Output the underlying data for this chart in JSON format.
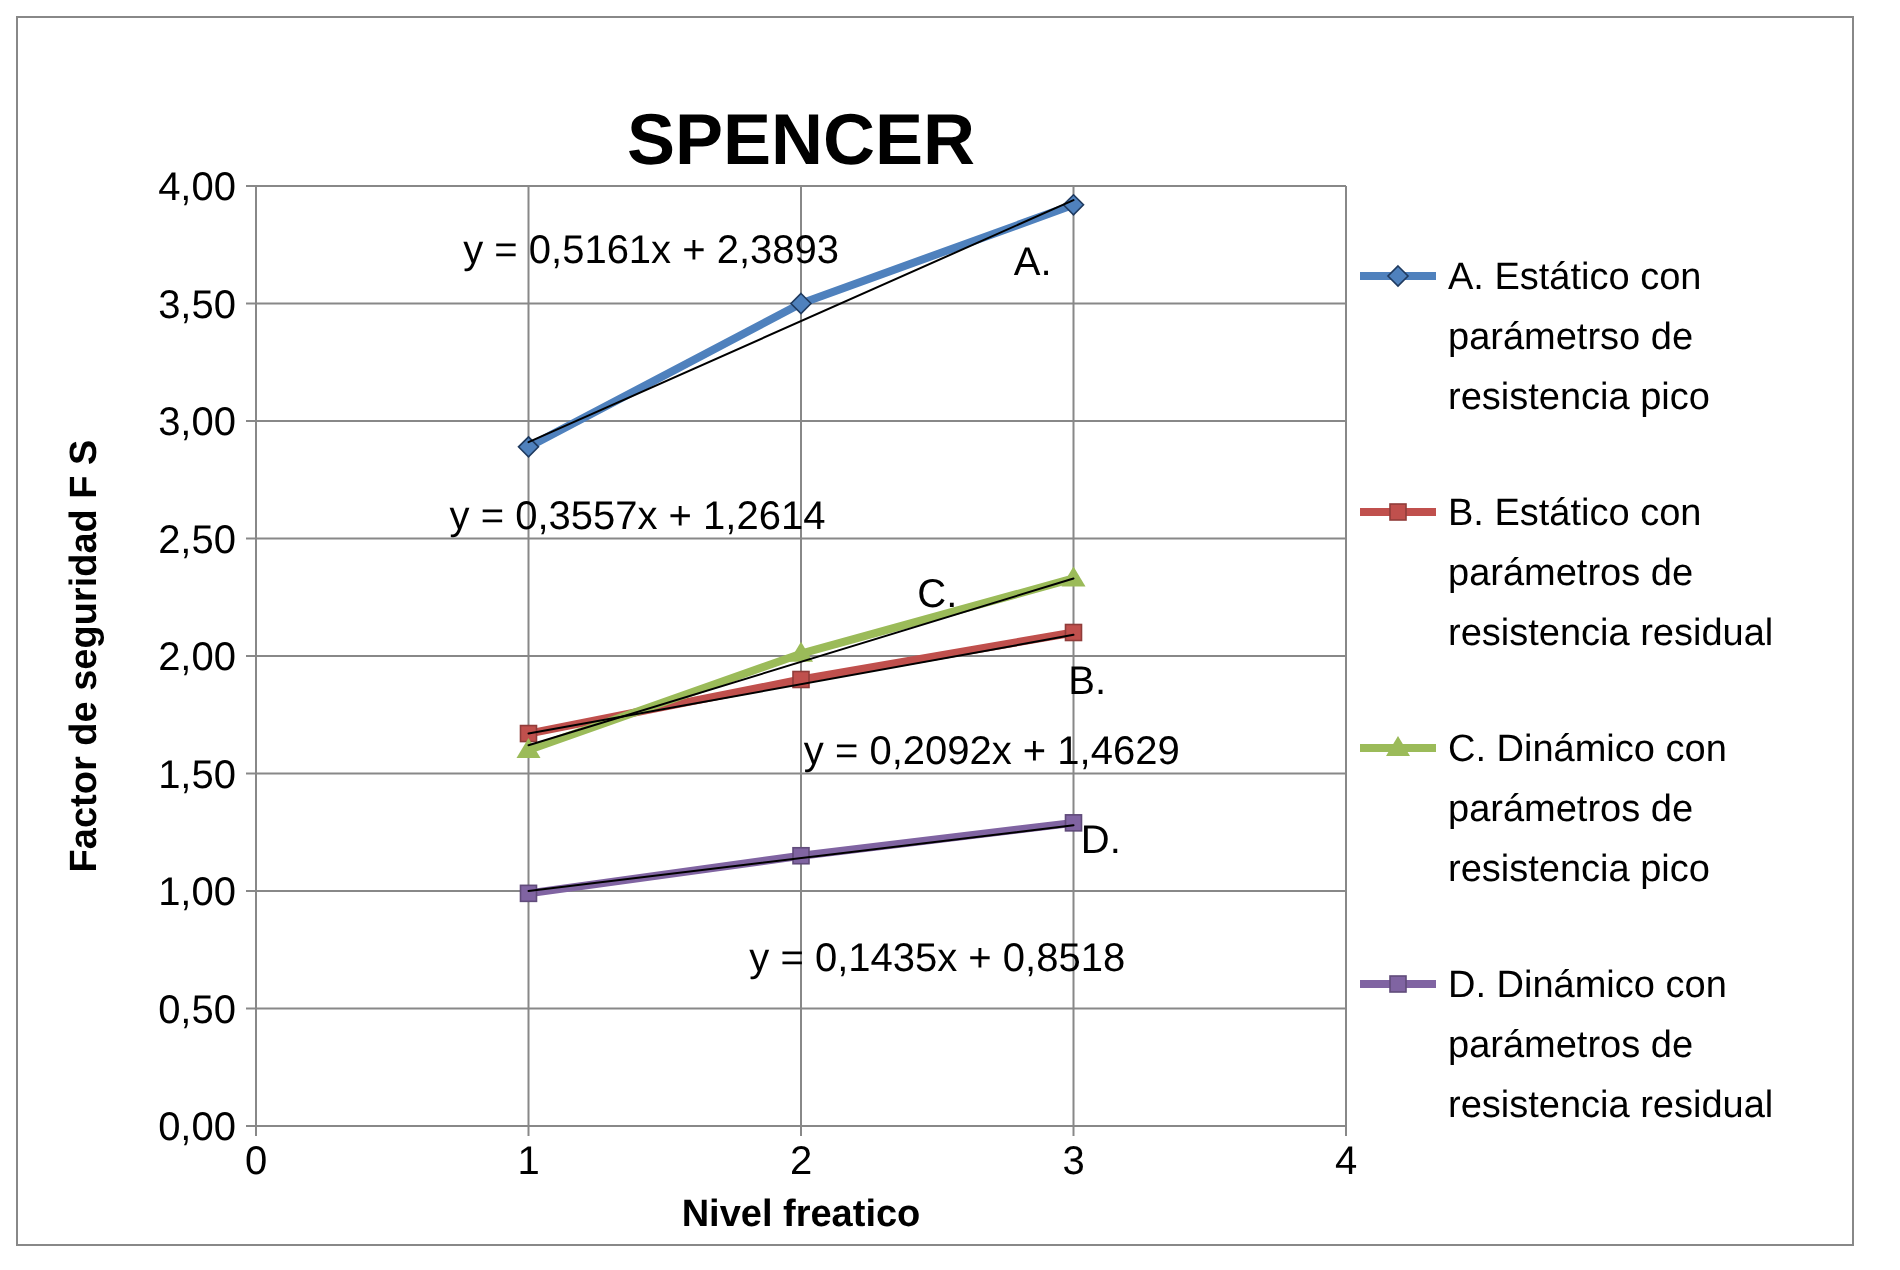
{
  "chart_data": {
    "type": "line",
    "title": "SPENCER",
    "xlabel": "Nivel freatico",
    "ylabel": "Factor de seguridad  F S",
    "xlim": [
      0,
      4
    ],
    "xticks": [
      0,
      1,
      2,
      3,
      4
    ],
    "ylim": [
      0,
      4
    ],
    "yticks": [
      {
        "value": 0,
        "label": "0,00"
      },
      {
        "value": 0.5,
        "label": "0,50"
      },
      {
        "value": 1,
        "label": "1,00"
      },
      {
        "value": 1.5,
        "label": "1,50"
      },
      {
        "value": 2,
        "label": "2,00"
      },
      {
        "value": 2.5,
        "label": "2,50"
      },
      {
        "value": 3,
        "label": "3,00"
      },
      {
        "value": 3.5,
        "label": "3,50"
      },
      {
        "value": 4,
        "label": "4,00"
      }
    ],
    "grid": true,
    "legend": "right",
    "line_style": "solid",
    "series": [
      {
        "name": "A. Estático con parámetrso de resistencia pico",
        "color": "#4f81bd",
        "x": [
          1,
          2,
          3
        ],
        "values": [
          2.89,
          3.5,
          3.92
        ],
        "marker": "diamond"
      },
      {
        "name": "B. Estático con parámetros de resistencia residual",
        "color": "#c0504d",
        "x": [
          1,
          2,
          3
        ],
        "values": [
          1.67,
          1.9,
          2.1
        ],
        "marker": "square"
      },
      {
        "name": "C. Dinámico con parámetros de resistencia pico",
        "color": "#9bbb59",
        "x": [
          1,
          2,
          3
        ],
        "values": [
          1.6,
          2.01,
          2.33
        ],
        "marker": "triangle"
      },
      {
        "name": "D. Dinámico con parámetros de resistencia residual",
        "color": "#8064a2",
        "x": [
          1,
          2,
          3
        ],
        "values": [
          0.99,
          1.15,
          1.29
        ],
        "marker": "square"
      },
      {
        "type": "line",
        "color": "#000000",
        "x": [
          1,
          3
        ],
        "values": [
          2.91,
          3.94
        ],
        "marker": "none"
      },
      {
        "type": "line",
        "color": "#000000",
        "x": [
          1,
          3
        ],
        "values": [
          1.67,
          2.09
        ],
        "marker": "none"
      },
      {
        "type": "line",
        "color": "#000000",
        "x": [
          1,
          3
        ],
        "values": [
          1.62,
          2.33
        ],
        "marker": "none"
      },
      {
        "type": "line",
        "color": "#000000",
        "x": [
          1,
          3
        ],
        "values": [
          1.0,
          1.28
        ],
        "marker": "none"
      }
    ],
    "annotations": [
      "y = 0,5161x + 2,3893",
      "A.",
      "y = 0,3557x + 1,2614",
      "C.",
      "B.",
      "y = 0,2092x + 1,4629",
      "D.",
      "y = 0,1435x + 0,8518"
    ]
  }
}
